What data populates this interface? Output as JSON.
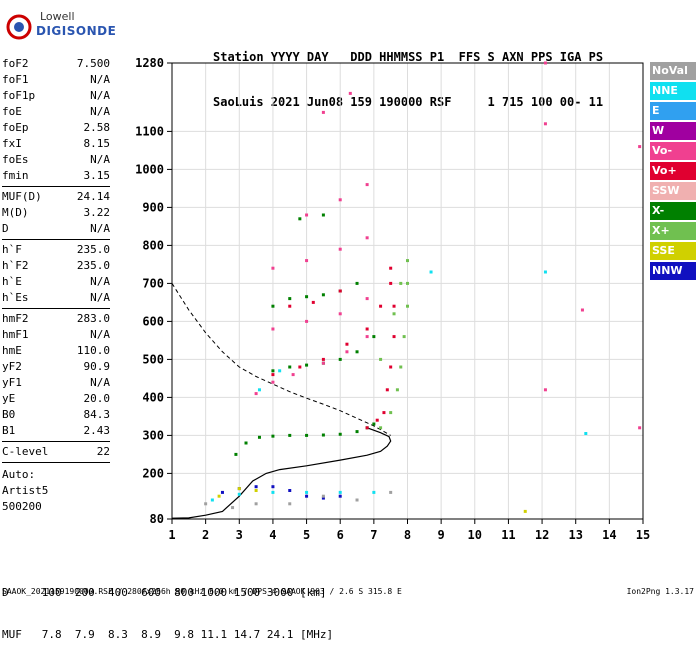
{
  "logo": {
    "line1": "Lowell",
    "line2": "DIGISONDE"
  },
  "header": {
    "line1": "Station YYYY DAY   DDD HHMMSS P1  FFS S AXN PPS IGA PS",
    "line2": "SaoLuis 2021 Jun08 159 190000 RSF     1 715 100 00- 11"
  },
  "params_group1": [
    {
      "name": "foF2",
      "value": "7.500"
    },
    {
      "name": "foF1",
      "value": "N/A"
    },
    {
      "name": "foF1p",
      "value": "N/A"
    },
    {
      "name": "foE",
      "value": "N/A"
    },
    {
      "name": "foEp",
      "value": "2.58"
    },
    {
      "name": "fxI",
      "value": "8.15"
    },
    {
      "name": "foEs",
      "value": "N/A"
    },
    {
      "name": "fmin",
      "value": "3.15"
    }
  ],
  "params_group2": [
    {
      "name": "MUF(D)",
      "value": "24.14"
    },
    {
      "name": "M(D)",
      "value": "3.22"
    },
    {
      "name": "D",
      "value": "N/A"
    }
  ],
  "params_group3": [
    {
      "name": "h`F",
      "value": "235.0"
    },
    {
      "name": "h`F2",
      "value": "235.0"
    },
    {
      "name": "h`E",
      "value": "N/A"
    },
    {
      "name": "h`Es",
      "value": "N/A"
    }
  ],
  "params_group4": [
    {
      "name": "hmF2",
      "value": "283.0"
    },
    {
      "name": "hmF1",
      "value": "N/A"
    },
    {
      "name": "hmE",
      "value": "110.0"
    },
    {
      "name": "yF2",
      "value": "90.9"
    },
    {
      "name": "yF1",
      "value": "N/A"
    },
    {
      "name": "yE",
      "value": "20.0"
    },
    {
      "name": "B0",
      "value": "84.3"
    },
    {
      "name": "B1",
      "value": "2.43"
    }
  ],
  "params_group5": [
    {
      "name": "C-level",
      "value": "22"
    }
  ],
  "auto": {
    "line1": "Auto:",
    "line2": "Artist5",
    "line3": "500200"
  },
  "legend": [
    {
      "label": "NoVal",
      "color": "#a0a0a0"
    },
    {
      "label": "NNE",
      "color": "#10e0f0"
    },
    {
      "label": "E",
      "color": "#30a0f0"
    },
    {
      "label": "W",
      "color": "#a000a0"
    },
    {
      "label": "Vo-",
      "color": "#f04090"
    },
    {
      "label": "Vo+",
      "color": "#e00030"
    },
    {
      "label": "SSW",
      "color": "#f0b0b0"
    },
    {
      "label": "X-",
      "color": "#008000"
    },
    {
      "label": "X+",
      "color": "#70c050"
    },
    {
      "label": "SSE",
      "color": "#d0d000"
    },
    {
      "label": "NNW",
      "color": "#1010c0"
    }
  ],
  "dtable": {
    "line1": "D     100  200  400  600  800 1000 1500 3000 [km]",
    "line2": "MUF   7.8  7.9  8.3  8.9  9.8 11.1 14.7 24.1 [MHz]"
  },
  "footer": {
    "left": "SAAOK_2021159190000.RSF / 280fx256h 50 kHz 5.0 km / DPS-4 SAAOK 903 / 2.6 S 315.8 E",
    "right": "Ion2Png 1.3.17"
  },
  "chart_data": {
    "type": "scatter",
    "title": "",
    "xlabel": "",
    "ylabel": "",
    "xlim": [
      1,
      15
    ],
    "ylim": [
      80,
      1280
    ],
    "x_ticks": [
      1,
      2,
      3,
      4,
      5,
      6,
      7,
      8,
      9,
      10,
      11,
      12,
      13,
      14,
      15
    ],
    "y_ticks": [
      80,
      200,
      300,
      400,
      500,
      600,
      700,
      800,
      900,
      1000,
      1100,
      1280
    ],
    "grid": true,
    "legend_placement": "right",
    "series": [
      {
        "name": "X-",
        "color": "#008000",
        "points": [
          [
            2.9,
            250
          ],
          [
            3.2,
            280
          ],
          [
            3.6,
            295
          ],
          [
            4.0,
            298
          ],
          [
            4.5,
            300
          ],
          [
            5.0,
            300
          ],
          [
            5.5,
            301
          ],
          [
            6.0,
            303
          ],
          [
            6.5,
            310
          ],
          [
            6.8,
            320
          ],
          [
            7.0,
            330
          ],
          [
            4.0,
            470
          ],
          [
            4.5,
            480
          ],
          [
            5.0,
            485
          ],
          [
            5.5,
            490
          ],
          [
            6.0,
            500
          ],
          [
            6.5,
            520
          ],
          [
            7.0,
            560
          ],
          [
            4.0,
            640
          ],
          [
            4.5,
            660
          ],
          [
            5.0,
            665
          ],
          [
            5.5,
            670
          ],
          [
            6.0,
            680
          ],
          [
            6.5,
            700
          ],
          [
            4.8,
            870
          ],
          [
            5.5,
            880
          ]
        ]
      },
      {
        "name": "X+",
        "color": "#70c050",
        "points": [
          [
            7.2,
            320
          ],
          [
            7.5,
            360
          ],
          [
            7.7,
            420
          ],
          [
            7.8,
            480
          ],
          [
            7.9,
            560
          ],
          [
            8.0,
            640
          ],
          [
            8.0,
            700
          ],
          [
            8.0,
            760
          ],
          [
            7.2,
            500
          ],
          [
            7.6,
            620
          ],
          [
            7.8,
            700
          ]
        ]
      },
      {
        "name": "Vo+",
        "color": "#e00030",
        "points": [
          [
            6.8,
            320
          ],
          [
            7.1,
            340
          ],
          [
            7.3,
            360
          ],
          [
            7.4,
            420
          ],
          [
            7.5,
            480
          ],
          [
            7.6,
            560
          ],
          [
            7.6,
            640
          ],
          [
            7.5,
            700
          ],
          [
            7.5,
            740
          ],
          [
            4.0,
            460
          ],
          [
            4.8,
            480
          ],
          [
            5.5,
            500
          ],
          [
            6.2,
            540
          ],
          [
            6.8,
            580
          ],
          [
            7.2,
            640
          ],
          [
            4.5,
            640
          ],
          [
            5.2,
            650
          ],
          [
            6.0,
            680
          ]
        ]
      },
      {
        "name": "Vo-",
        "color": "#f04090",
        "points": [
          [
            3.5,
            410
          ],
          [
            4.0,
            440
          ],
          [
            4.6,
            460
          ],
          [
            5.5,
            490
          ],
          [
            6.2,
            520
          ],
          [
            6.8,
            560
          ],
          [
            4.0,
            580
          ],
          [
            5.0,
            600
          ],
          [
            6.0,
            620
          ],
          [
            6.8,
            660
          ],
          [
            4.0,
            740
          ],
          [
            5.0,
            760
          ],
          [
            6.0,
            790
          ],
          [
            6.8,
            820
          ],
          [
            5.0,
            880
          ],
          [
            6.0,
            920
          ],
          [
            6.8,
            960
          ],
          [
            5.5,
            1150
          ],
          [
            6.3,
            1200
          ],
          [
            12.1,
            1280
          ],
          [
            12.1,
            1120
          ],
          [
            12.1,
            420
          ],
          [
            13.2,
            630
          ],
          [
            14.9,
            1060
          ],
          [
            14.9,
            320
          ]
        ]
      },
      {
        "name": "NNE",
        "color": "#10e0f0",
        "points": [
          [
            2.2,
            130
          ],
          [
            3.0,
            145
          ],
          [
            4.0,
            150
          ],
          [
            5.0,
            150
          ],
          [
            6.0,
            150
          ],
          [
            7.0,
            150
          ],
          [
            3.6,
            420
          ],
          [
            4.2,
            470
          ],
          [
            8.7,
            730
          ],
          [
            12.1,
            730
          ],
          [
            13.3,
            305
          ]
        ]
      },
      {
        "name": "NNW",
        "color": "#1010c0",
        "points": [
          [
            2.5,
            150
          ],
          [
            3.0,
            160
          ],
          [
            3.5,
            165
          ],
          [
            4.0,
            165
          ],
          [
            4.5,
            155
          ],
          [
            5.0,
            140
          ],
          [
            5.5,
            135
          ],
          [
            6.0,
            140
          ]
        ]
      },
      {
        "name": "SSE",
        "color": "#d0d000",
        "points": [
          [
            2.4,
            140
          ],
          [
            3.0,
            160
          ],
          [
            3.5,
            155
          ],
          [
            11.5,
            100
          ]
        ]
      },
      {
        "name": "NoVal",
        "color": "#a0a0a0",
        "points": [
          [
            2.0,
            120
          ],
          [
            2.8,
            110
          ],
          [
            3.5,
            120
          ],
          [
            4.5,
            120
          ],
          [
            5.5,
            140
          ],
          [
            6.5,
            130
          ],
          [
            7.5,
            150
          ]
        ]
      }
    ],
    "profile_curve": [
      [
        1,
        82
      ],
      [
        1.5,
        83
      ],
      [
        2,
        90
      ],
      [
        2.5,
        100
      ],
      [
        3,
        140
      ],
      [
        3.4,
        180
      ],
      [
        3.8,
        200
      ],
      [
        4.2,
        210
      ],
      [
        5,
        220
      ],
      [
        6,
        235
      ],
      [
        6.8,
        248
      ],
      [
        7.2,
        258
      ],
      [
        7.4,
        272
      ],
      [
        7.5,
        285
      ],
      [
        7.45,
        297
      ],
      [
        7.2,
        307
      ],
      [
        6.8,
        320
      ]
    ],
    "muf_curve": [
      [
        1,
        700
      ],
      [
        1.5,
        630
      ],
      [
        2,
        570
      ],
      [
        2.5,
        520
      ],
      [
        3,
        480
      ],
      [
        3.5,
        455
      ],
      [
        4,
        435
      ],
      [
        4.5,
        415
      ],
      [
        5,
        398
      ],
      [
        5.5,
        382
      ],
      [
        6,
        365
      ],
      [
        6.5,
        345
      ],
      [
        7,
        325
      ],
      [
        7.5,
        300
      ]
    ]
  }
}
